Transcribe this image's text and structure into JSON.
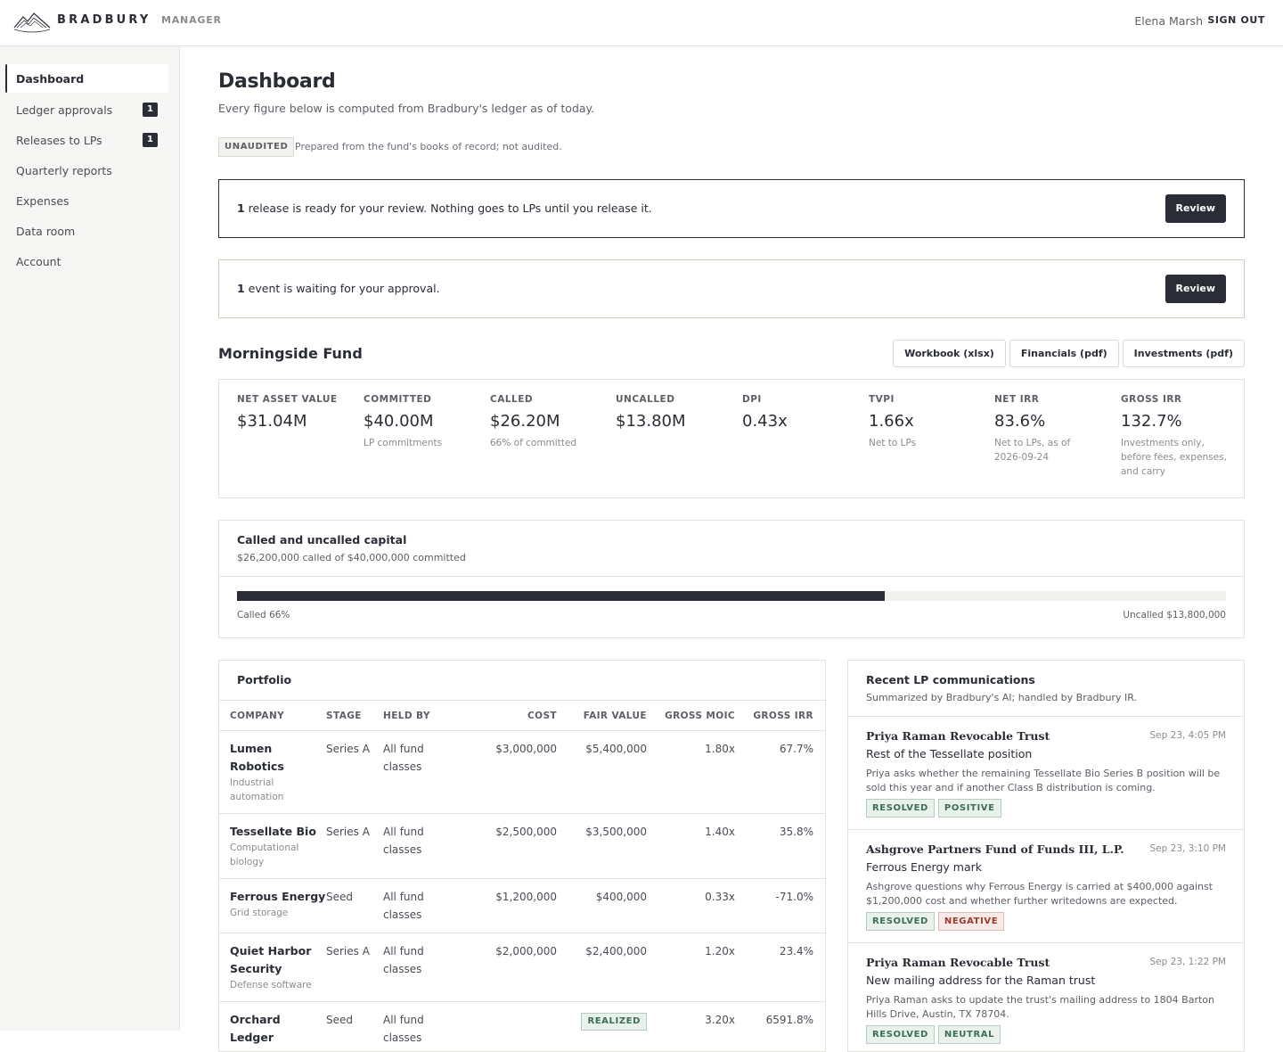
{
  "header": {
    "brand": "BRADBURY",
    "sub": "MANAGER",
    "user": "Elena Marsh",
    "signout": "SIGN OUT",
    "logo_icon": "mountain-logo-icon"
  },
  "sidebar": {
    "items": [
      {
        "label": "Dashboard",
        "badge": ""
      },
      {
        "label": "Ledger approvals",
        "badge": "1"
      },
      {
        "label": "Releases to LPs",
        "badge": "1"
      },
      {
        "label": "Quarterly reports",
        "badge": ""
      },
      {
        "label": "Expenses",
        "badge": ""
      },
      {
        "label": "Data room",
        "badge": ""
      },
      {
        "label": "Account",
        "badge": ""
      }
    ]
  },
  "page": {
    "title": "Dashboard",
    "subtitle": "Every figure below is computed from Bradbury's ledger as of today.",
    "unaudited_tag": "UNAUDITED",
    "unaudited_note": "Prepared from the fund's books of record; not audited."
  },
  "alerts": {
    "release": {
      "count": "1",
      "text": " release is ready for your review. Nothing goes to LPs until you release it.",
      "button": "Review"
    },
    "event": {
      "count": "1",
      "text": " event is waiting for your approval.",
      "button": "Review"
    }
  },
  "fund": {
    "name": "Morningside Fund",
    "downloads": [
      "Workbook (xlsx)",
      "Financials (pdf)",
      "Investments (pdf)"
    ],
    "metrics": [
      {
        "label": "NET ASSET VALUE",
        "value": "$31.04M",
        "note": ""
      },
      {
        "label": "COMMITTED",
        "value": "$40.00M",
        "note": "LP commitments"
      },
      {
        "label": "CALLED",
        "value": "$26.20M",
        "note": "66% of committed"
      },
      {
        "label": "UNCALLED",
        "value": "$13.80M",
        "note": ""
      },
      {
        "label": "DPI",
        "value": "0.43x",
        "note": ""
      },
      {
        "label": "TVPI",
        "value": "1.66x",
        "note": "Net to LPs"
      },
      {
        "label": "NET IRR",
        "value": "83.6%",
        "note": "Net to LPs, as of 2026-09-24"
      },
      {
        "label": "GROSS IRR",
        "value": "132.7%",
        "note": "Investments only, before fees, expenses, and carry"
      }
    ]
  },
  "capital": {
    "title": "Called and uncalled capital",
    "subtitle": "$26,200,000 called of $40,000,000 committed",
    "called_fraction": 0.655,
    "left_label": "Called 66%",
    "right_label": "Uncalled $13,800,000"
  },
  "portfolio": {
    "title": "Portfolio",
    "columns": [
      "COMPANY",
      "STAGE",
      "HELD BY",
      "COST",
      "FAIR VALUE",
      "GROSS MOIC",
      "GROSS IRR"
    ],
    "rows": [
      {
        "company": "Lumen Robotics",
        "sector": "Industrial automation",
        "stage": "Series A",
        "held": "All fund classes",
        "cost": "$3,000,000",
        "fair": "$5,400,000",
        "moic": "1.80x",
        "irr": "67.7%",
        "neg": false,
        "realized": false
      },
      {
        "company": "Tessellate Bio",
        "sector": "Computational biology",
        "stage": "Series A",
        "held": "All fund classes",
        "cost": "$2,500,000",
        "fair": "$3,500,000",
        "moic": "1.40x",
        "irr": "35.8%",
        "neg": false,
        "realized": false
      },
      {
        "company": "Ferrous Energy",
        "sector": "Grid storage",
        "stage": "Seed",
        "held": "All fund classes",
        "cost": "$1,200,000",
        "fair": "$400,000",
        "moic": "0.33x",
        "irr": "-71.0%",
        "neg": true,
        "realized": false
      },
      {
        "company": "Quiet Harbor Security",
        "sector": "Defense software",
        "stage": "Series A",
        "held": "All fund classes",
        "cost": "$2,000,000",
        "fair": "$2,400,000",
        "moic": "1.20x",
        "irr": "23.4%",
        "neg": false,
        "realized": false
      },
      {
        "company": "Orchard Ledger",
        "sector": "",
        "stage": "Seed",
        "held": "All fund classes",
        "cost": "",
        "fair": "REALIZED",
        "moic": "3.20x",
        "irr": "6591.8%",
        "neg": false,
        "realized": true
      }
    ]
  },
  "communications": {
    "title": "Recent LP communications",
    "subtitle": "Summarized by Bradbury's AI; handled by Bradbury IR.",
    "items": [
      {
        "from": "Priya Raman Revocable Trust",
        "date": "Sep 23, 4:05 PM",
        "subject": "Rest of the Tessellate position",
        "body": "Priya asks whether the remaining Tessellate Bio Series B position will be sold this year and if another Class B distribution is coming.",
        "tags": [
          {
            "label": "RESOLVED",
            "tone": "good"
          },
          {
            "label": "POSITIVE",
            "tone": "good"
          }
        ]
      },
      {
        "from": "Ashgrove Partners Fund of Funds III, L.P.",
        "date": "Sep 23, 3:10 PM",
        "subject": "Ferrous Energy mark",
        "body": "Ashgrove questions why Ferrous Energy is carried at $400,000 against $1,200,000 cost and whether further writedowns are expected.",
        "tags": [
          {
            "label": "RESOLVED",
            "tone": "good"
          },
          {
            "label": "NEGATIVE",
            "tone": "bad"
          }
        ]
      },
      {
        "from": "Priya Raman Revocable Trust",
        "date": "Sep 23, 1:22 PM",
        "subject": "New mailing address for the Raman trust",
        "body": "Priya Raman asks to update the trust's mailing address to 1804 Barton Hills Drive, Austin, TX 78704.",
        "tags": [
          {
            "label": "RESOLVED",
            "tone": "good"
          },
          {
            "label": "NEUTRAL",
            "tone": "good"
          }
        ]
      }
    ]
  }
}
